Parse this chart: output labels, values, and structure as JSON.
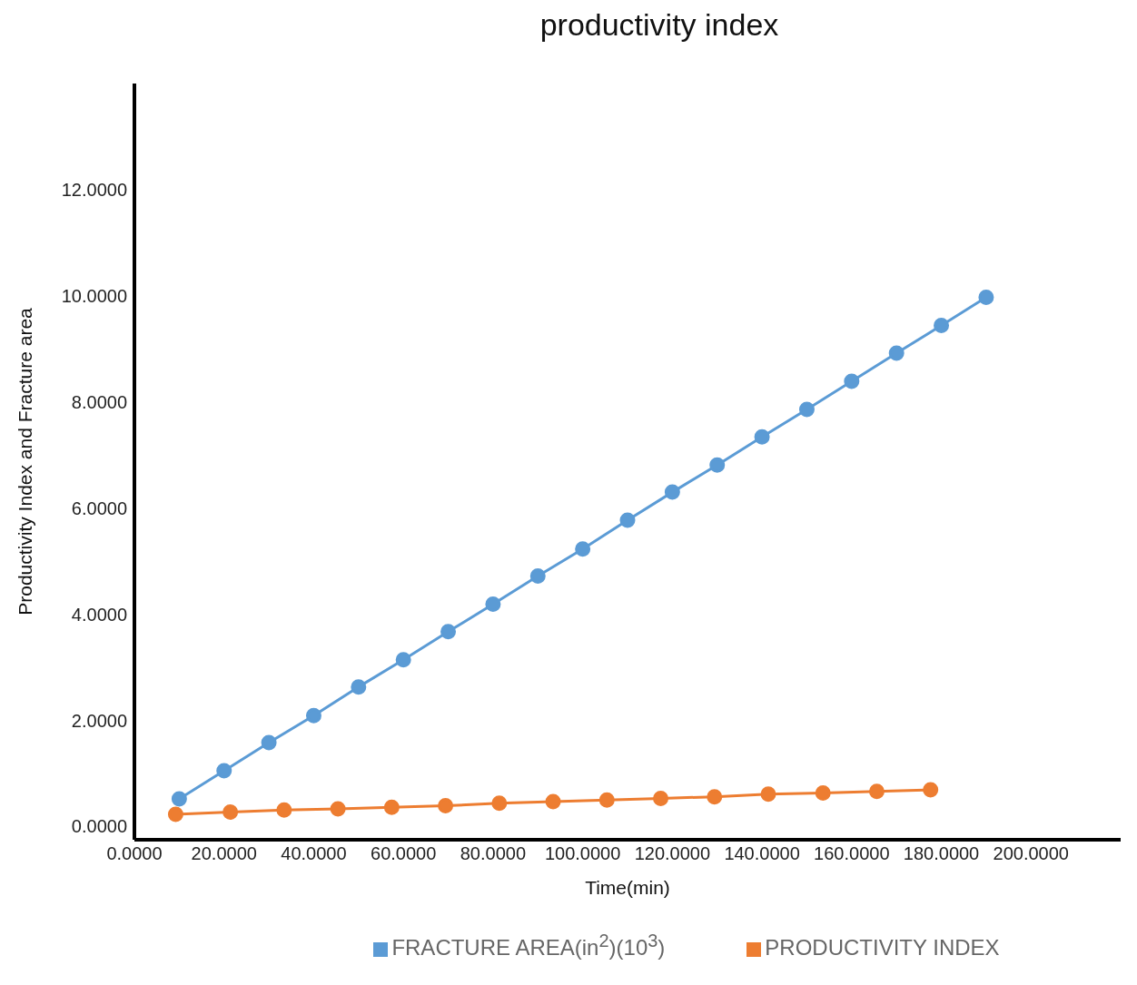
{
  "chart_data": {
    "type": "line",
    "title": "productivity index",
    "xlabel": "Time(min)",
    "ylabel": "Productivity Index and Fracture area",
    "series": [
      {
        "name": "FRACTURE AREA(in$^{2}$)(10$^{3}$)",
        "color": "#5b9bd5",
        "x": [
          10,
          20,
          30,
          40,
          50,
          60,
          70,
          80,
          90,
          100,
          110,
          120,
          130,
          140,
          150,
          160,
          170,
          180,
          190
        ],
        "values": [
          0.52,
          1.05,
          1.58,
          2.09,
          2.63,
          3.14,
          3.67,
          4.19,
          4.72,
          5.23,
          5.77,
          6.3,
          6.81,
          7.34,
          7.86,
          8.39,
          8.92,
          9.44,
          9.97
        ]
      },
      {
        "name": "PRODUCTIVITY INDEX",
        "color": "#ed7d31",
        "x": [
          9.2,
          21.4,
          33.4,
          45.4,
          57.4,
          69.4,
          81.4,
          93.4,
          105.4,
          117.4,
          129.4,
          141.4,
          153.6,
          165.6,
          177.6
        ],
        "values": [
          0.23,
          0.27,
          0.31,
          0.33,
          0.36,
          0.39,
          0.44,
          0.47,
          0.5,
          0.53,
          0.56,
          0.61,
          0.63,
          0.66,
          0.69
        ]
      }
    ],
    "xlim": [
      0,
      220
    ],
    "xticks": [
      {
        "value": 0,
        "label": "0.0000"
      },
      {
        "value": 20,
        "label": "20.0000"
      },
      {
        "value": 40,
        "label": "40.0000"
      },
      {
        "value": 60,
        "label": "60.0000"
      },
      {
        "value": 80,
        "label": "80.0000"
      },
      {
        "value": 100,
        "label": "100.0000"
      },
      {
        "value": 120,
        "label": "120.0000"
      },
      {
        "value": 140,
        "label": "140.0000"
      },
      {
        "value": 160,
        "label": "160.0000"
      },
      {
        "value": 180,
        "label": "180.0000"
      },
      {
        "value": 200,
        "label": "200.0000"
      }
    ],
    "ylim": [
      -0.25,
      14
    ],
    "yticks": [
      {
        "value": 0,
        "label": "0.0000"
      },
      {
        "value": 2,
        "label": "2.0000"
      },
      {
        "value": 4,
        "label": "4.0000"
      },
      {
        "value": 6,
        "label": "6.0000"
      },
      {
        "value": 8,
        "label": "8.0000"
      },
      {
        "value": 10,
        "label": "10.0000"
      },
      {
        "value": 12,
        "label": "12.0000"
      }
    ],
    "grid": false,
    "legend": "bottom",
    "marker": "circle",
    "line_style": "solid"
  }
}
